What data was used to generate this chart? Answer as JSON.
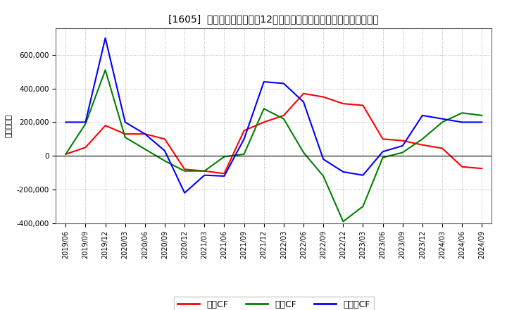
{
  "title": "[1605]  キャッシュフローの12か月移動合計の対前年同期増減額の推移",
  "ylabel": "（百万円）",
  "background_color": "#ffffff",
  "grid_color": "#999999",
  "ylim": [
    -400000,
    760000
  ],
  "yticks": [
    -400000,
    -200000,
    0,
    200000,
    400000,
    600000
  ],
  "xticks": [
    "2019/06",
    "2019/09",
    "2019/12",
    "2020/03",
    "2020/06",
    "2020/09",
    "2020/12",
    "2021/03",
    "2021/06",
    "2021/09",
    "2021/12",
    "2022/03",
    "2022/06",
    "2022/09",
    "2022/12",
    "2023/03",
    "2023/06",
    "2023/09",
    "2023/12",
    "2024/03",
    "2024/06",
    "2024/09"
  ],
  "series": {
    "営業CF": {
      "color": "#ff0000",
      "data": {
        "2019/06": 10000,
        "2019/09": 50000,
        "2019/12": 180000,
        "2020/03": 130000,
        "2020/06": 130000,
        "2020/09": 100000,
        "2020/12": -80000,
        "2021/03": -90000,
        "2021/06": -105000,
        "2021/09": 150000,
        "2021/12": 200000,
        "2022/03": 240000,
        "2022/06": 370000,
        "2022/09": 350000,
        "2022/12": 310000,
        "2023/03": 300000,
        "2023/06": 100000,
        "2023/09": 90000,
        "2023/12": 65000,
        "2024/03": 45000,
        "2024/06": -65000,
        "2024/09": -75000
      }
    },
    "投資CF": {
      "color": "#008000",
      "data": {
        "2019/06": 10000,
        "2019/09": 190000,
        "2019/12": 510000,
        "2020/03": 110000,
        "2020/06": 40000,
        "2020/09": -30000,
        "2020/12": -90000,
        "2021/03": -90000,
        "2021/06": -5000,
        "2021/09": 10000,
        "2021/12": 280000,
        "2022/03": 220000,
        "2022/06": 20000,
        "2022/09": -120000,
        "2022/12": -390000,
        "2023/03": -300000,
        "2023/06": -10000,
        "2023/09": 20000,
        "2023/12": 100000,
        "2024/03": 200000,
        "2024/06": 255000,
        "2024/09": 240000
      }
    },
    "フリーCF": {
      "color": "#0000ff",
      "data": {
        "2019/06": 200000,
        "2019/09": 200000,
        "2019/12": 700000,
        "2020/03": 200000,
        "2020/06": 130000,
        "2020/09": 30000,
        "2020/12": -220000,
        "2021/03": -115000,
        "2021/06": -120000,
        "2021/09": 100000,
        "2021/12": 440000,
        "2022/03": 430000,
        "2022/06": 320000,
        "2022/09": -20000,
        "2022/12": -95000,
        "2023/03": -115000,
        "2023/06": 25000,
        "2023/09": 60000,
        "2023/12": 240000,
        "2024/03": 220000,
        "2024/06": 200000,
        "2024/09": 200000
      }
    }
  },
  "legend_labels": [
    "営業CF",
    "投資CF",
    "フリーCF"
  ],
  "legend_colors": [
    "#ff0000",
    "#008000",
    "#0000ff"
  ]
}
